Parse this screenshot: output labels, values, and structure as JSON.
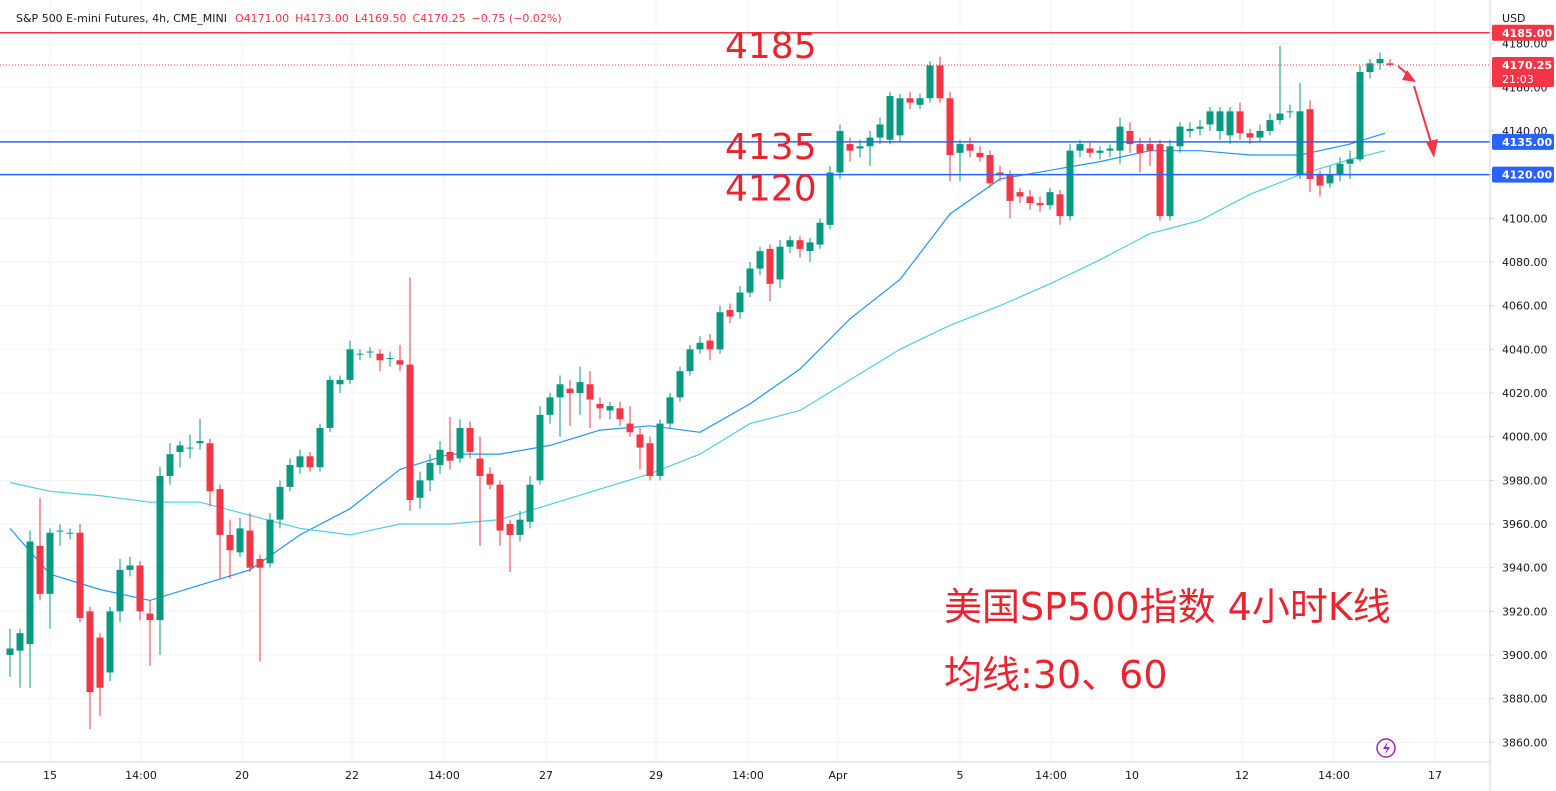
{
  "chart_data": {
    "type": "candlestick",
    "header": {
      "symbol": "S&P 500 E-mini Futures, 4h, CME_MINI",
      "open": "O4171.00",
      "high": "H4173.00",
      "low": "L4169.50",
      "close": "C4170.25",
      "change": "−0.75 (−0.02%)"
    },
    "currency": "USD",
    "up_color": "#089981",
    "down_color": "#f23645",
    "ylim": [
      3851,
      4200
    ],
    "yticks": [
      3860,
      3880,
      3900,
      3920,
      3940,
      3960,
      3980,
      4000,
      4020,
      4040,
      4060,
      4080,
      4100,
      4120,
      4140,
      4160,
      4180
    ],
    "ytick_labels": [
      "3860.00",
      "3880.00",
      "3900.00",
      "3920.00",
      "3940.00",
      "3960.00",
      "3980.00",
      "4000.00",
      "4020.00",
      "4040.00",
      "4060.00",
      "4080.00",
      "4100.00",
      "4120.00",
      "4140.00",
      "4160.00",
      "4180.00"
    ],
    "xlim": [
      -1,
      148
    ],
    "xticks": [
      {
        "value": 4,
        "label": "15"
      },
      {
        "value": 13.1,
        "label": "14:00"
      },
      {
        "value": 23.2,
        "label": "20"
      },
      {
        "value": 34.2,
        "label": "22"
      },
      {
        "value": 43.4,
        "label": "14:00"
      },
      {
        "value": 53.6,
        "label": "27"
      },
      {
        "value": 64.6,
        "label": "29"
      },
      {
        "value": 73.8,
        "label": "14:00"
      },
      {
        "value": 82.8,
        "label": "Apr"
      },
      {
        "value": 95,
        "label": "5"
      },
      {
        "value": 104.1,
        "label": "14:00"
      },
      {
        "value": 112.2,
        "label": "10"
      },
      {
        "value": 123.2,
        "label": "12"
      },
      {
        "value": 132.4,
        "label": "14:00"
      },
      {
        "value": 142.5,
        "label": "17"
      }
    ],
    "grid": true,
    "ohlc": [
      [
        3900,
        3912,
        3890,
        3903
      ],
      [
        3902,
        3912,
        3885,
        3910
      ],
      [
        3905,
        3957,
        3885,
        3952
      ],
      [
        3950,
        3972,
        3925,
        3928
      ],
      [
        3928,
        3958,
        3912,
        3956
      ],
      [
        3957,
        3960,
        3950,
        3957
      ],
      [
        3956,
        3958,
        3953,
        3956
      ],
      [
        3956,
        3960,
        3915,
        3917
      ],
      [
        3920,
        3922,
        3866,
        3883
      ],
      [
        3908,
        3910,
        3872,
        3885
      ],
      [
        3892,
        3922,
        3888,
        3920
      ],
      [
        3920,
        3944,
        3915,
        3939
      ],
      [
        3939,
        3945,
        3936,
        3941
      ],
      [
        3941,
        3943,
        3916,
        3920
      ],
      [
        3919,
        3925,
        3895,
        3916
      ],
      [
        3916,
        3986,
        3900,
        3982
      ],
      [
        3982,
        3997,
        3978,
        3992
      ],
      [
        3993,
        3998,
        3986,
        3996
      ],
      [
        3995,
        4001,
        3990,
        3995
      ],
      [
        3997,
        4008,
        3994,
        3998
      ],
      [
        3997,
        3999,
        3968,
        3975
      ],
      [
        3976,
        3978,
        3935,
        3955
      ],
      [
        3955,
        3962,
        3935,
        3948
      ],
      [
        3947,
        3963,
        3945,
        3958
      ],
      [
        3957,
        3965,
        3938,
        3940
      ],
      [
        3944,
        3946,
        3897,
        3940
      ],
      [
        3942,
        3965,
        3940,
        3962
      ],
      [
        3962,
        3980,
        3958,
        3977
      ],
      [
        3977,
        3990,
        3975,
        3987
      ],
      [
        3986,
        3994,
        3983,
        3991
      ],
      [
        3991,
        3993,
        3984,
        3986
      ],
      [
        3986,
        4006,
        3984,
        4004
      ],
      [
        4004,
        4028,
        4002,
        4026
      ],
      [
        4024,
        4028,
        4020,
        4026
      ],
      [
        4026,
        4044,
        4024,
        4040
      ],
      [
        4038,
        4040,
        4035,
        4038
      ],
      [
        4039,
        4041,
        4036,
        4039
      ],
      [
        4038,
        4040,
        4030,
        4035
      ],
      [
        4036,
        4039,
        4032,
        4036
      ],
      [
        4035,
        4042,
        4030,
        4033
      ],
      [
        4033,
        4073,
        3966,
        3971
      ],
      [
        3972,
        3984,
        3967,
        3980
      ],
      [
        3980,
        3992,
        3975,
        3988
      ],
      [
        3987,
        3998,
        3983,
        3994
      ],
      [
        3993,
        4009,
        3985,
        3989
      ],
      [
        3990,
        4008,
        3988,
        4004
      ],
      [
        4004,
        4007,
        3990,
        3993
      ],
      [
        3990,
        4000,
        3950,
        3982
      ],
      [
        3983,
        3986,
        3976,
        3978
      ],
      [
        3978,
        3980,
        3950,
        3957
      ],
      [
        3960,
        3962,
        3938,
        3955
      ],
      [
        3955,
        3966,
        3952,
        3962
      ],
      [
        3961,
        3982,
        3958,
        3978
      ],
      [
        3980,
        4014,
        3978,
        4010
      ],
      [
        4010,
        4020,
        4006,
        4018
      ],
      [
        4018,
        4028,
        4000,
        4024
      ],
      [
        4022,
        4026,
        4005,
        4020
      ],
      [
        4020,
        4032,
        4010,
        4025
      ],
      [
        4024,
        4030,
        4004,
        4017
      ],
      [
        4015,
        4018,
        4008,
        4013
      ],
      [
        4012,
        4016,
        4008,
        4014
      ],
      [
        4013,
        4016,
        4005,
        4008
      ],
      [
        4006,
        4014,
        4000,
        4002
      ],
      [
        4001,
        4004,
        3985,
        3995
      ],
      [
        3997,
        4000,
        3980,
        3982
      ],
      [
        3982,
        4008,
        3980,
        4006
      ],
      [
        4006,
        4020,
        4004,
        4018
      ],
      [
        4018,
        4032,
        4016,
        4030
      ],
      [
        4030,
        4042,
        4028,
        4040
      ],
      [
        4040,
        4046,
        4038,
        4043
      ],
      [
        4044,
        4047,
        4035,
        4040
      ],
      [
        4040,
        4060,
        4038,
        4057
      ],
      [
        4058,
        4061,
        4052,
        4055
      ],
      [
        4057,
        4069,
        4054,
        4066
      ],
      [
        4066,
        4080,
        4064,
        4077
      ],
      [
        4077,
        4087,
        4074,
        4085
      ],
      [
        4086,
        4088,
        4062,
        4070
      ],
      [
        4072,
        4090,
        4068,
        4087
      ],
      [
        4087,
        4092,
        4084,
        4090
      ],
      [
        4090,
        4092,
        4082,
        4086
      ],
      [
        4085,
        4091,
        4080,
        4089
      ],
      [
        4088,
        4100,
        4086,
        4098
      ],
      [
        4097,
        4124,
        4095,
        4121
      ],
      [
        4121,
        4143,
        4118,
        4140
      ],
      [
        4134,
        4137,
        4126,
        4131
      ],
      [
        4132,
        4136,
        4128,
        4133
      ],
      [
        4133,
        4140,
        4124,
        4137
      ],
      [
        4137,
        4146,
        4134,
        4143
      ],
      [
        4136,
        4158,
        4134,
        4156
      ],
      [
        4138,
        4157,
        4135,
        4155
      ],
      [
        4155,
        4158,
        4150,
        4153
      ],
      [
        4152,
        4157,
        4150,
        4155
      ],
      [
        4155,
        4172,
        4153,
        4170
      ],
      [
        4170,
        4174,
        4153,
        4155
      ],
      [
        4155,
        4158,
        4117,
        4129
      ],
      [
        4130,
        4136,
        4117,
        4134
      ],
      [
        4134,
        4137,
        4128,
        4131
      ],
      [
        4130,
        4133,
        4126,
        4128
      ],
      [
        4129,
        4131,
        4114,
        4116
      ],
      [
        4121,
        4124,
        4117,
        4120
      ],
      [
        4120,
        4122,
        4100,
        4108
      ],
      [
        4112,
        4114,
        4107,
        4110
      ],
      [
        4110,
        4113,
        4104,
        4107
      ],
      [
        4107,
        4110,
        4103,
        4106
      ],
      [
        4106,
        4114,
        4104,
        4112
      ],
      [
        4111,
        4113,
        4097,
        4101
      ],
      [
        4101,
        4134,
        4099,
        4131
      ],
      [
        4131,
        4136,
        4128,
        4134
      ],
      [
        4132,
        4135,
        4128,
        4130
      ],
      [
        4130,
        4133,
        4127,
        4131
      ],
      [
        4131,
        4134,
        4128,
        4132
      ],
      [
        4131,
        4146,
        4125,
        4142
      ],
      [
        4140,
        4144,
        4130,
        4134
      ],
      [
        4134,
        4137,
        4121,
        4130
      ],
      [
        4134,
        4137,
        4124,
        4131
      ],
      [
        4134,
        4136,
        4099,
        4101
      ],
      [
        4101,
        4136,
        4099,
        4133
      ],
      [
        4133,
        4144,
        4130,
        4142
      ],
      [
        4140,
        4144,
        4137,
        4141
      ],
      [
        4141,
        4145,
        4138,
        4142
      ],
      [
        4143,
        4151,
        4140,
        4149
      ],
      [
        4140,
        4151,
        4136,
        4149
      ],
      [
        4138,
        4151,
        4134,
        4149
      ],
      [
        4149,
        4153,
        4136,
        4139
      ],
      [
        4139,
        4141,
        4134,
        4137
      ],
      [
        4137,
        4143,
        4135,
        4140
      ],
      [
        4140,
        4148,
        4138,
        4145
      ],
      [
        4145,
        4179,
        4143,
        4148
      ],
      [
        4149,
        4152,
        4146,
        4149
      ],
      [
        4120,
        4162,
        4118,
        4149
      ],
      [
        4150,
        4154,
        4112,
        4118
      ],
      [
        4120,
        4122,
        4110,
        4115
      ],
      [
        4116,
        4124,
        4114,
        4120
      ],
      [
        4120,
        4128,
        4117,
        4125
      ],
      [
        4125,
        4131,
        4118,
        4127
      ],
      [
        4127,
        4170,
        4126,
        4167
      ],
      [
        4167,
        4173,
        4164,
        4171
      ],
      [
        4171,
        4176,
        4168,
        4173
      ],
      [
        4171,
        4173,
        4169.5,
        4170.25
      ]
    ],
    "moving_averages": [
      {
        "color": "#2196f3",
        "x": [
          0,
          4,
          9,
          14,
          19,
          24,
          29,
          34,
          39,
          44,
          49,
          54,
          59,
          64,
          69,
          74,
          79,
          84,
          89,
          94,
          99,
          104,
          109,
          114,
          119,
          124,
          129,
          134,
          137.5
        ],
        "values": [
          3958,
          3937,
          3930,
          3925,
          3932,
          3939,
          3955,
          3967,
          3985,
          3992,
          3992,
          3996,
          4003,
          4005,
          4002,
          4015,
          4031,
          4054,
          4072,
          4102,
          4118,
          4122,
          4126,
          4131,
          4131,
          4129,
          4129,
          4134,
          4139
        ]
      },
      {
        "color": "#4dd0e1",
        "x": [
          0,
          4,
          9,
          14,
          19,
          24,
          29,
          34,
          39,
          44,
          49,
          54,
          59,
          64,
          69,
          74,
          79,
          84,
          89,
          94,
          99,
          104,
          109,
          114,
          119,
          124,
          129,
          134,
          137.5
        ],
        "values": [
          3979,
          3975,
          3973,
          3970,
          3970,
          3964,
          3958,
          3955,
          3960,
          3960,
          3962,
          3969,
          3976,
          3983,
          3992,
          4006,
          4012,
          4026,
          4040,
          4051,
          4060,
          4070,
          4081,
          4093,
          4099,
          4111,
          4120,
          4127,
          4131
        ]
      }
    ],
    "levels": [
      {
        "value": 4185,
        "label": "4185.00",
        "annotation": "4185",
        "color": "#f23645"
      },
      {
        "value": 4135,
        "label": "4135.00",
        "annotation": "4135",
        "color": "#2962ff"
      },
      {
        "value": 4120,
        "label": "4120.00",
        "annotation": "4120",
        "color": "#2962ff"
      }
    ],
    "last_price": {
      "value": 4170.25,
      "label": "4170.25",
      "countdown": "21:03",
      "color": "#f23645"
    },
    "annotations": [
      "美国SP500指数 4小时K线",
      "均线:30、60"
    ]
  }
}
